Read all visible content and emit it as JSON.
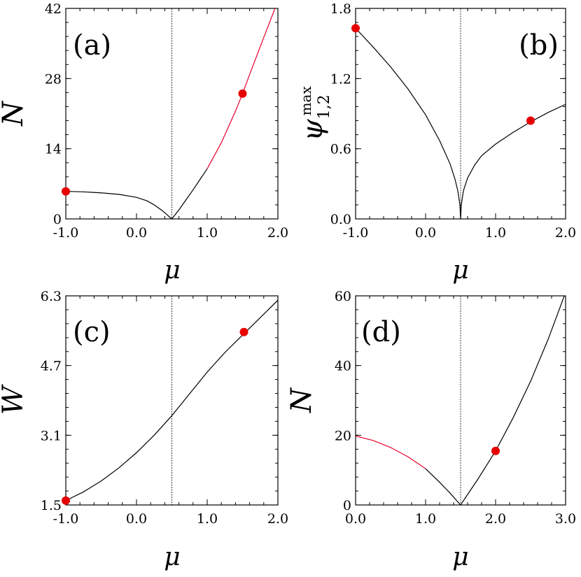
{
  "chart_data": [
    {
      "id": "a",
      "type": "line",
      "panel_label": "(a)",
      "xlabel": "μ",
      "ylabel": "N",
      "xlim": [
        -1.0,
        2.0
      ],
      "ylim": [
        0,
        42
      ],
      "xticks": [
        "-1.0",
        "0.0",
        "1.0",
        "2.0"
      ],
      "yticks": [
        "0",
        "14",
        "28",
        "42"
      ],
      "vline_x": 0.5,
      "series": [
        {
          "color": "#000000",
          "x": [
            -1.0,
            -0.75,
            -0.5,
            -0.25,
            0.0,
            0.15,
            0.25,
            0.35,
            0.42,
            0.47,
            0.5
          ],
          "y": [
            5.5,
            5.4,
            5.2,
            4.9,
            4.3,
            3.6,
            2.8,
            1.8,
            1.0,
            0.35,
            0.0
          ]
        },
        {
          "color": "#000000",
          "x": [
            0.5,
            0.6,
            0.7,
            0.8,
            0.9,
            1.0
          ],
          "y": [
            0.0,
            1.8,
            3.8,
            5.8,
            7.9,
            10.0
          ]
        },
        {
          "color": "#e8002a",
          "x": [
            1.0,
            1.2,
            1.4,
            1.5,
            1.6,
            1.8,
            2.0
          ],
          "y": [
            10.0,
            15.2,
            21.5,
            25.0,
            28.8,
            36.2,
            43.5
          ]
        }
      ],
      "points": [
        {
          "x": -1.0,
          "y": 5.5,
          "color": "#e60000"
        },
        {
          "x": 1.5,
          "y": 25.0,
          "color": "#e60000"
        }
      ]
    },
    {
      "id": "b",
      "type": "line",
      "panel_label": "(b)",
      "xlabel": "μ",
      "ylabel": "ψ",
      "ylabel_sub": "1,2",
      "ylabel_sup": "max",
      "xlim": [
        -1.0,
        2.0
      ],
      "ylim": [
        0,
        1.8
      ],
      "xticks": [
        "-1.0",
        "0.0",
        "1.0",
        "2.0"
      ],
      "yticks": [
        "0.0",
        "0.6",
        "1.2",
        "1.8"
      ],
      "vline_x": 0.5,
      "series": [
        {
          "color": "#000000",
          "x": [
            -1.0,
            -0.75,
            -0.5,
            -0.25,
            0.0,
            0.2,
            0.35,
            0.42,
            0.46,
            0.49,
            0.5
          ],
          "y": [
            1.63,
            1.47,
            1.3,
            1.11,
            0.89,
            0.67,
            0.47,
            0.34,
            0.24,
            0.12,
            0.0
          ]
        },
        {
          "color": "#000000",
          "x": [
            0.5,
            0.51,
            0.54,
            0.6,
            0.7,
            0.8,
            1.0,
            1.25,
            1.5,
            1.75,
            2.0
          ],
          "y": [
            0.0,
            0.12,
            0.24,
            0.35,
            0.46,
            0.54,
            0.64,
            0.74,
            0.83,
            0.91,
            0.98
          ]
        }
      ],
      "points": [
        {
          "x": -1.0,
          "y": 1.63,
          "color": "#e60000"
        },
        {
          "x": 1.5,
          "y": 0.84,
          "color": "#e60000"
        }
      ]
    },
    {
      "id": "c",
      "type": "line",
      "panel_label": "(c)",
      "xlabel": "μ",
      "ylabel": "W",
      "xlim": [
        -1.0,
        2.0
      ],
      "ylim": [
        1.5,
        6.3
      ],
      "xticks": [
        "-1.0",
        "0.0",
        "1.0",
        "2.0"
      ],
      "yticks": [
        "1.5",
        "3.1",
        "4.7",
        "6.3"
      ],
      "vline_x": 0.5,
      "series": [
        {
          "color": "#000000",
          "x": [
            -1.0,
            -0.75,
            -0.5,
            -0.25,
            0.0,
            0.25,
            0.5,
            0.75,
            1.0,
            1.25,
            1.5,
            1.75,
            2.0
          ],
          "y": [
            1.6,
            1.8,
            2.05,
            2.35,
            2.7,
            3.1,
            3.55,
            4.05,
            4.55,
            5.0,
            5.4,
            5.8,
            6.2
          ]
        }
      ],
      "points": [
        {
          "x": -1.0,
          "y": 1.6,
          "color": "#e60000"
        },
        {
          "x": 1.52,
          "y": 5.47,
          "color": "#e60000"
        }
      ]
    },
    {
      "id": "d",
      "type": "line",
      "panel_label": "(d)",
      "xlabel": "μ",
      "ylabel": "N",
      "xlim": [
        0.0,
        3.0
      ],
      "ylim": [
        0,
        60
      ],
      "xticks": [
        "0.0",
        "1.0",
        "2.0",
        "3.0"
      ],
      "yticks": [
        "0",
        "20",
        "40",
        "60"
      ],
      "vline_x": 1.5,
      "series": [
        {
          "color": "#e8002a",
          "x": [
            0.0,
            0.25,
            0.5,
            0.75,
            1.0
          ],
          "y": [
            19.8,
            18.5,
            16.5,
            13.8,
            10.4
          ]
        },
        {
          "color": "#000000",
          "x": [
            1.0,
            1.2,
            1.35,
            1.45,
            1.5
          ],
          "y": [
            10.4,
            6.5,
            3.4,
            1.1,
            0.0
          ]
        },
        {
          "color": "#000000",
          "x": [
            1.5,
            1.75,
            2.0,
            2.25,
            2.5,
            2.75,
            3.0
          ],
          "y": [
            0.0,
            7.5,
            15.5,
            25.0,
            35.5,
            47.5,
            61.0
          ]
        }
      ],
      "points": [
        {
          "x": 2.0,
          "y": 15.5,
          "color": "#e60000"
        }
      ]
    }
  ]
}
